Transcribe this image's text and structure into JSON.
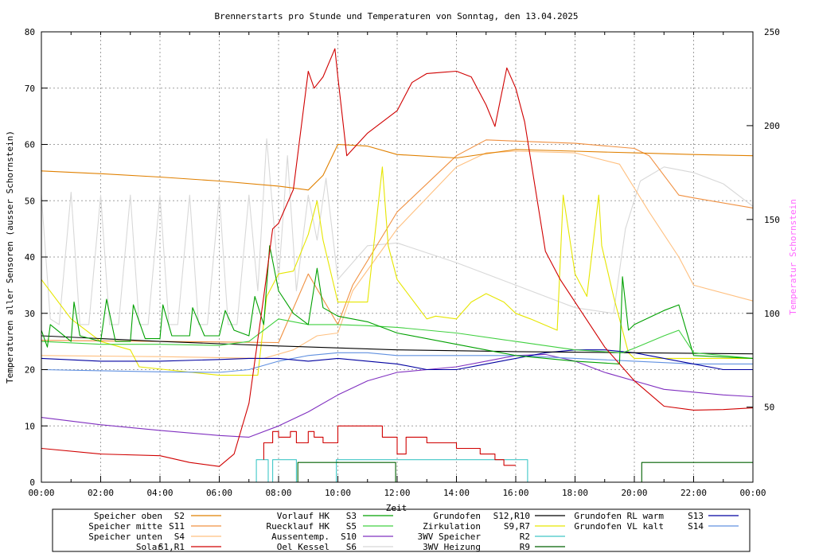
{
  "chart_data": {
    "type": "line",
    "title": "Brennerstarts pro Stunde und Temperaturen von Sonntag, den 13.04.2025",
    "xlabel": "Zeit",
    "ylabel": "Temperaturen aller Sensoren (ausser Schornstein)",
    "y2label": "Temperatur Schornstein",
    "y2label_color": "#ff66ff",
    "xlim": [
      0,
      24
    ],
    "ylim": [
      0,
      80
    ],
    "y2lim": [
      10,
      250
    ],
    "x_ticks": [
      0,
      2,
      4,
      6,
      8,
      10,
      12,
      14,
      16,
      18,
      20,
      22,
      24
    ],
    "x_tick_labels": [
      "00:00",
      "02:00",
      "04:00",
      "06:00",
      "08:00",
      "10:00",
      "12:00",
      "14:00",
      "16:00",
      "18:00",
      "20:00",
      "22:00",
      "00:00"
    ],
    "y_ticks": [
      0,
      10,
      20,
      30,
      40,
      50,
      60,
      70,
      80
    ],
    "y2_ticks": [
      50,
      100,
      150,
      200,
      250
    ],
    "grid": true,
    "legend_position": "bottom",
    "series": [
      {
        "name": "Speicher oben",
        "code": "S2",
        "axis": "y",
        "color": "#e08000",
        "x": [
          0,
          2,
          4,
          6,
          8,
          9,
          9.5,
          10,
          11,
          12,
          14,
          16,
          18,
          20,
          22,
          24
        ],
        "y": [
          55.3,
          54.8,
          54.2,
          53.5,
          52.6,
          51.9,
          54.5,
          60,
          59.7,
          58.2,
          57.6,
          59.1,
          58.8,
          58.5,
          58.2,
          58
        ]
      },
      {
        "name": "Speicher mitte",
        "code": "S11",
        "axis": "y",
        "color": "#f09040",
        "x": [
          0,
          4,
          8,
          9,
          10,
          10.5,
          12,
          14,
          15,
          16,
          18,
          20,
          20.5,
          21.5,
          22,
          24
        ],
        "y": [
          25.2,
          25,
          24.8,
          37,
          28,
          35,
          48,
          58,
          60.8,
          60.6,
          60.2,
          59.3,
          58,
          51,
          50.5,
          48.7
        ]
      },
      {
        "name": "Speicher unten",
        "code": "S4",
        "axis": "y",
        "color": "#ffc080",
        "x": [
          0,
          4,
          7.5,
          8.5,
          9.3,
          10,
          10.5,
          12,
          14,
          15,
          16,
          18,
          19.5,
          20.5,
          21.5,
          22,
          24
        ],
        "y": [
          22.5,
          22.3,
          22,
          23.5,
          26,
          26.5,
          34,
          45,
          56,
          58.5,
          58.8,
          58.5,
          56.5,
          48,
          40,
          35,
          32.2
        ]
      },
      {
        "name": "Solar",
        "code": "S1,R1",
        "axis": "y",
        "color": "#d00000",
        "x": [
          0,
          2,
          4,
          5,
          6,
          6.5,
          7,
          7.5,
          7.8,
          8,
          8.5,
          9,
          9.2,
          9.5,
          9.9,
          10,
          10.3,
          11,
          11.5,
          12,
          12.5,
          13,
          13.5,
          14,
          14.5,
          15,
          15.3,
          15.7,
          16,
          16.3,
          17,
          17.5,
          18,
          19,
          20,
          21,
          22,
          23,
          24
        ],
        "y": [
          6,
          5,
          4.7,
          3.5,
          2.8,
          5,
          14,
          33,
          45,
          46,
          52,
          73,
          70,
          72,
          77,
          72,
          58,
          62,
          64,
          66,
          71,
          72.6,
          72.8,
          73,
          72,
          67,
          63.2,
          73.6,
          70,
          64,
          41,
          36,
          32,
          24,
          18,
          13.5,
          12.8,
          12.9,
          13.2
        ]
      },
      {
        "name": "Vorlauf HK",
        "code": "S3",
        "axis": "y",
        "color": "#00a000",
        "x": [
          0,
          0.2,
          0.3,
          1,
          1.1,
          1.3,
          2,
          2.2,
          2.5,
          3,
          3.1,
          3.5,
          4,
          4.1,
          4.4,
          5,
          5.1,
          5.5,
          6,
          6.2,
          6.5,
          7,
          7.2,
          7.5,
          7.7,
          8,
          8.5,
          9,
          9.3,
          9.5,
          10,
          11,
          12,
          14,
          16,
          18,
          19.5,
          19.6,
          19.8,
          20,
          21,
          21.5,
          22,
          24
        ],
        "y": [
          27,
          24,
          28,
          25,
          32,
          26,
          25,
          32.5,
          25,
          25,
          31.5,
          25.5,
          25.5,
          31.5,
          26,
          26,
          31,
          26,
          26,
          30.5,
          27,
          26,
          33,
          28,
          42,
          34,
          30,
          28,
          38,
          31,
          29.5,
          28.5,
          26.5,
          24.5,
          22.5,
          21.5,
          21,
          36.5,
          27,
          28,
          30.5,
          31.5,
          22.5,
          22
        ]
      },
      {
        "name": "Ruecklauf HK",
        "code": "S5",
        "axis": "y",
        "color": "#40d040",
        "x": [
          0,
          2,
          4,
          6,
          7,
          8,
          9,
          10,
          11,
          12,
          14,
          16,
          18,
          19.6,
          20,
          21,
          21.5,
          22,
          24
        ],
        "y": [
          25,
          24.5,
          24.5,
          24.3,
          25,
          29,
          28,
          28,
          27.8,
          27.5,
          26.5,
          25,
          23.5,
          23,
          23.8,
          26,
          27,
          23,
          22
        ]
      },
      {
        "name": "Aussentemp.",
        "code": "S10",
        "axis": "y",
        "color": "#8030c0",
        "x": [
          0,
          2,
          4,
          6,
          7,
          8,
          9,
          10,
          11,
          12,
          14,
          15,
          16,
          17,
          18,
          19,
          20,
          21,
          22,
          23,
          24
        ],
        "y": [
          11.5,
          10.2,
          9.2,
          8.3,
          8,
          10,
          12.5,
          15.5,
          18,
          19.5,
          20.5,
          21.5,
          22.5,
          22.7,
          21.5,
          19.5,
          18,
          16.5,
          16,
          15.5,
          15.2
        ]
      },
      {
        "name": "Oel Kessel",
        "code": "S6",
        "axis": "y",
        "color": "#d8d8d8",
        "x": [
          0,
          0.3,
          0.6,
          1,
          1.3,
          1.6,
          2,
          2.3,
          2.6,
          3,
          3.3,
          3.6,
          4,
          4.3,
          4.6,
          5,
          5.3,
          5.6,
          6,
          6.3,
          6.6,
          7,
          7.3,
          7.6,
          8,
          8.3,
          8.6,
          9,
          9.3,
          9.6,
          10,
          11,
          12,
          14,
          16,
          18,
          19.3,
          19.7,
          20.2,
          21,
          22,
          23,
          24
        ],
        "y": [
          51,
          29,
          28,
          51.5,
          28,
          28,
          51,
          28,
          28,
          51,
          28,
          28,
          51,
          28,
          28,
          51,
          28,
          28,
          51,
          28,
          28,
          51,
          34,
          61,
          36,
          58,
          34,
          51,
          43,
          54,
          36,
          42,
          42.5,
          39,
          35,
          31,
          30,
          45,
          53.5,
          56,
          55,
          53,
          49
        ]
      },
      {
        "name": "Grundofen",
        "code": "S12,R10",
        "axis": "y",
        "color": "#000000",
        "x": [
          0,
          4,
          8,
          12,
          16,
          20,
          24
        ],
        "y": [
          26,
          25,
          24.2,
          23.5,
          23.2,
          23,
          22.8
        ]
      },
      {
        "name": "Zirkulation",
        "code": "S9,R7",
        "axis": "y",
        "color": "#e6e600",
        "x": [
          0,
          1,
          2,
          3,
          3.3,
          6,
          7,
          7.3,
          7.6,
          8,
          8.5,
          9,
          9.3,
          9.5,
          10,
          11,
          11.5,
          11.7,
          12,
          13,
          13.3,
          14,
          14.5,
          15,
          15.6,
          16,
          16.5,
          17.4,
          17.6,
          18,
          18.4,
          18.8,
          18.9,
          19.3,
          19.8,
          20,
          21,
          22,
          24
        ],
        "y": [
          36,
          29,
          25,
          23.5,
          20.5,
          19,
          19,
          19,
          33,
          37,
          37.5,
          44,
          50,
          43,
          32,
          32,
          56,
          42,
          36,
          29,
          29.5,
          29,
          32,
          33.5,
          32,
          30,
          29,
          27,
          51,
          37,
          33,
          51,
          42,
          33,
          23,
          22,
          22,
          22,
          22
        ]
      },
      {
        "name": "3WV Speicher",
        "code": "R2",
        "axis": "y",
        "color": "#40c8c8",
        "x": [
          7.25,
          7.25,
          7.65,
          7.65,
          7.8,
          7.8,
          8.6,
          8.6,
          9.95,
          9.95,
          16.4,
          16.4
        ],
        "y": [
          0,
          4,
          4,
          0,
          0,
          4,
          4,
          0,
          0,
          4,
          4,
          0
        ]
      },
      {
        "name": "3WV Heizung",
        "code": "R9",
        "axis": "y",
        "color": "#006000",
        "x": [
          8.65,
          8.65,
          9.95,
          9.95,
          11.95,
          11.95,
          20.25,
          20.25,
          24
        ],
        "y": [
          0,
          3.5,
          3.5,
          3.5,
          3.5,
          0,
          0,
          3.5,
          3.5
        ]
      },
      {
        "name": "Grundofen RL warm",
        "code": "S13",
        "axis": "y",
        "color": "#0000a0",
        "x": [
          0,
          2,
          4,
          6,
          7,
          8,
          9,
          10,
          11,
          12,
          13,
          14,
          15,
          16,
          17,
          18,
          19,
          20,
          21,
          22,
          23,
          24
        ],
        "y": [
          22,
          21.5,
          21.5,
          21.8,
          22,
          22,
          21.5,
          22,
          21.5,
          21,
          20,
          20,
          21,
          22,
          23,
          23.5,
          23.5,
          23,
          22,
          21,
          20,
          20
        ]
      },
      {
        "name": "Grundofen VL kalt",
        "code": "S14",
        "axis": "y",
        "color": "#6090e0",
        "x": [
          0,
          2,
          4,
          6,
          7,
          8,
          9,
          10,
          11,
          12,
          14,
          16,
          18,
          20,
          22,
          24
        ],
        "y": [
          20,
          19.8,
          19.6,
          19.5,
          20,
          21.5,
          22.5,
          23,
          23,
          22.5,
          22.5,
          22.5,
          22,
          21.5,
          21,
          21
        ]
      },
      {
        "name": "Brennerstarts",
        "code": "",
        "axis": "y",
        "color": "#d00000",
        "step": true,
        "x": [
          7.5,
          7.5,
          7.8,
          7.8,
          8,
          8,
          8.4,
          8.4,
          8.6,
          8.6,
          9,
          9,
          9.2,
          9.2,
          9.5,
          9.5,
          10,
          10,
          11.5,
          11.5,
          12,
          12,
          12.3,
          12.3,
          13,
          13,
          14,
          14,
          14.8,
          14.8,
          15.3,
          15.3,
          15.6,
          15.6,
          16
        ],
        "y": [
          4,
          7,
          7,
          9,
          9,
          8,
          8,
          9,
          9,
          7,
          7,
          9,
          9,
          8,
          8,
          7,
          7,
          10,
          10,
          8,
          8,
          5,
          5,
          8,
          8,
          7,
          7,
          6,
          6,
          5,
          5,
          4,
          4,
          3,
          3
        ]
      }
    ]
  },
  "legend": [
    {
      "label": "Speicher oben",
      "code": "S2",
      "color": "#e08000"
    },
    {
      "label": "Speicher mitte",
      "code": "S11",
      "color": "#f09040"
    },
    {
      "label": "Speicher unten",
      "code": "S4",
      "color": "#ffc080"
    },
    {
      "label": "Solar",
      "code": "S1,R1",
      "color": "#d00000"
    },
    {
      "label": "Vorlauf HK",
      "code": "S3",
      "color": "#00a000"
    },
    {
      "label": "Ruecklauf HK",
      "code": "S5",
      "color": "#40d040"
    },
    {
      "label": "Aussentemp.",
      "code": "S10",
      "color": "#8030c0"
    },
    {
      "label": "Oel Kessel",
      "code": "S6",
      "color": "#d8d8d8"
    },
    {
      "label": "Grundofen",
      "code": "S12,R10",
      "color": "#000000"
    },
    {
      "label": "Zirkulation",
      "code": "S9,R7",
      "color": "#e6e600"
    },
    {
      "label": "3WV Speicher",
      "code": "R2",
      "color": "#40c8c8"
    },
    {
      "label": "3WV Heizung",
      "code": "R9",
      "color": "#006000"
    },
    {
      "label": "Grundofen RL warm",
      "code": "S13",
      "color": "#0000a0"
    },
    {
      "label": "Grundofen VL kalt",
      "code": "S14",
      "color": "#6090e0"
    }
  ]
}
